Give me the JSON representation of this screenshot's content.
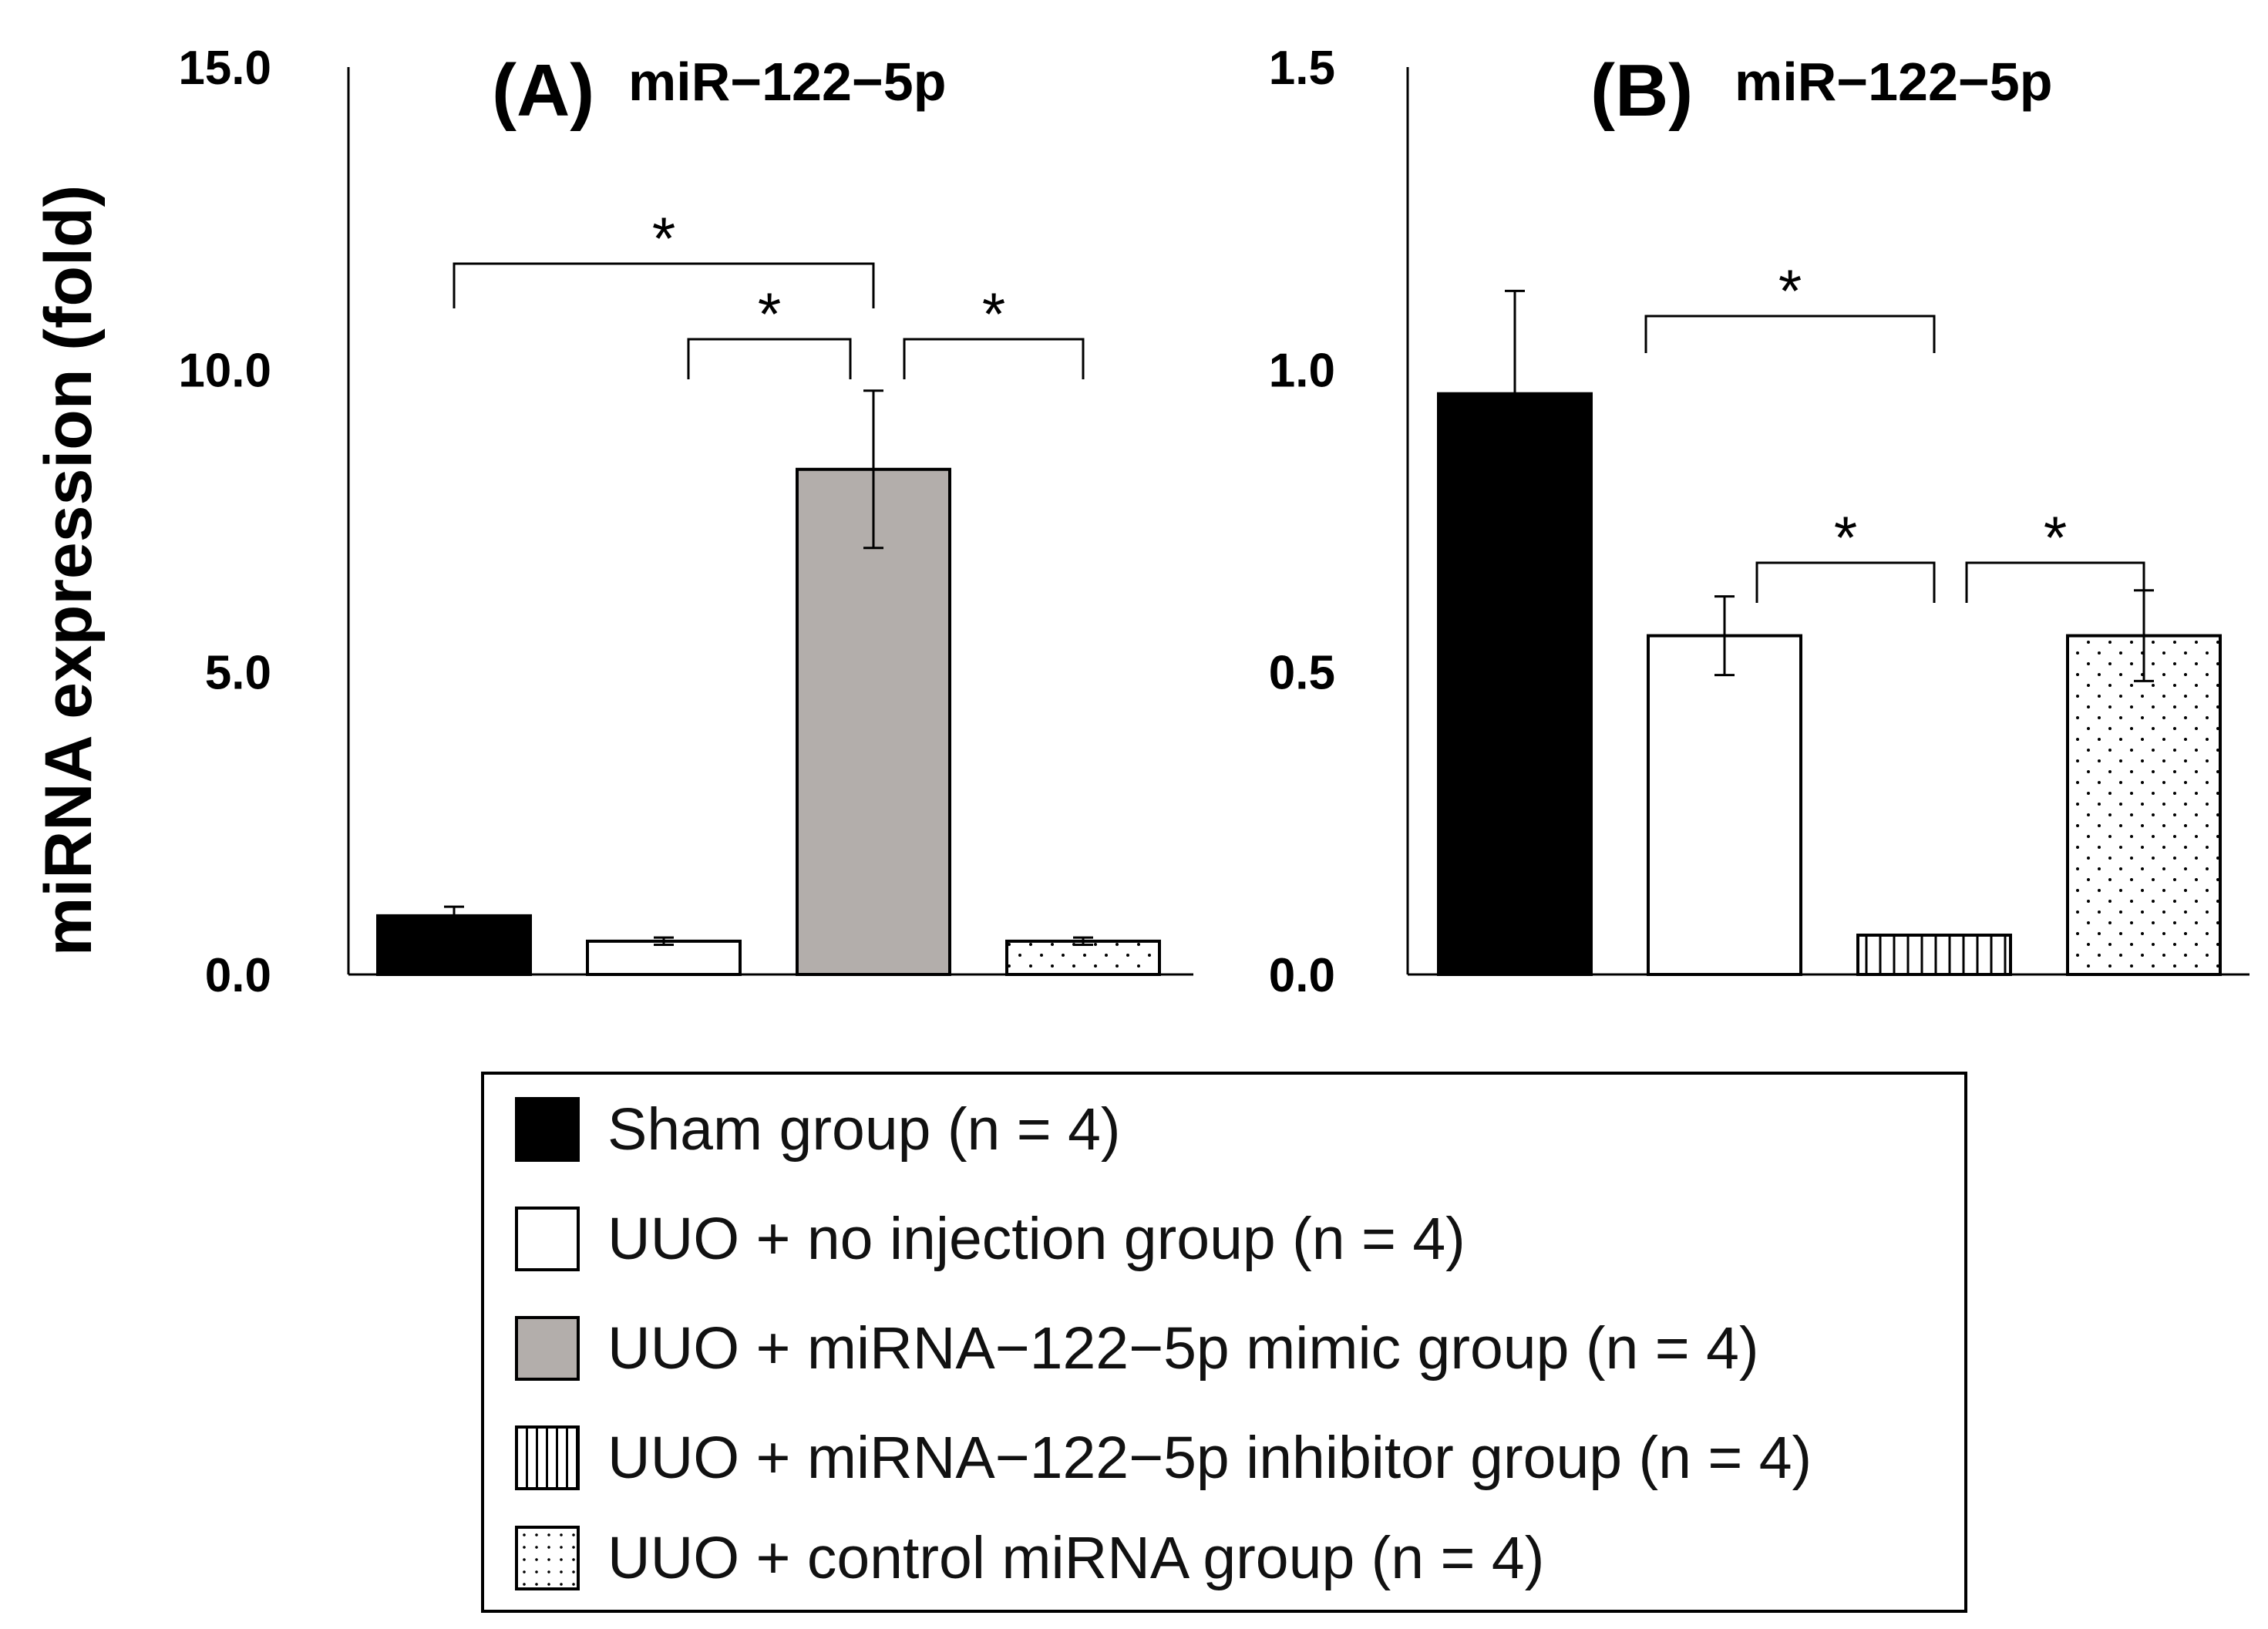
{
  "y_axis_label": "miRNA expression (fold)",
  "significance_mark": "*",
  "legend": [
    {
      "label": "Sham group (n = 4)",
      "pattern": "solid-black"
    },
    {
      "label": "UUO + no injection group (n = 4)",
      "pattern": "white"
    },
    {
      "label": "UUO + miRNA−122−5p mimic group (n = 4)",
      "pattern": "gray"
    },
    {
      "label": "UUO + miRNA−122−5p inhibitor group (n = 4)",
      "pattern": "vertical-stripes"
    },
    {
      "label": "UUO + control miRNA group (n = 4)",
      "pattern": "dots"
    }
  ],
  "colors": {
    "black": "#000000",
    "white": "#ffffff",
    "gray": "#b3aeab",
    "stroke": "#000000"
  },
  "chart_data": [
    {
      "type": "bar",
      "panel_label": "(A)",
      "title": "miR−122−5p",
      "ylabel": "miRNA expression (fold)",
      "ylim": [
        0,
        15
      ],
      "yticks": [
        "0.0",
        "5.0",
        "10.0",
        "15.0"
      ],
      "ytick_values": [
        0,
        5,
        10,
        15
      ],
      "categories": [
        "Sham group",
        "UUO + no injection group",
        "UUO + miRNA−122−5p mimic group",
        "UUO + control miRNA group"
      ],
      "values": [
        0.97,
        0.55,
        8.35,
        0.55
      ],
      "errors": [
        0.15,
        0.06,
        1.3,
        0.06
      ],
      "patterns": [
        "solid-black",
        "white",
        "gray",
        "dots"
      ],
      "significance": [
        {
          "from": 0,
          "to": 2,
          "label": "*"
        },
        {
          "from": 1,
          "to": 2,
          "label": "*"
        },
        {
          "from": 2,
          "to": 3,
          "label": "*"
        }
      ]
    },
    {
      "type": "bar",
      "panel_label": "(B)",
      "title": "miR−122−5p",
      "ylabel": "",
      "ylim": [
        0,
        1.5
      ],
      "yticks": [
        "0.0",
        "0.5",
        "1.0",
        "1.5"
      ],
      "ytick_values": [
        0,
        0.5,
        1.0,
        1.5
      ],
      "categories": [
        "Sham group",
        "UUO + no injection group",
        "UUO + miRNA−122−5p inhibitor group",
        "UUO + control miRNA group"
      ],
      "values": [
        0.96,
        0.56,
        0.065,
        0.56
      ],
      "errors": [
        0.17,
        0.065,
        0.0,
        0.075
      ],
      "patterns": [
        "solid-black",
        "white",
        "vertical-stripes",
        "dots"
      ],
      "significance": [
        {
          "from": 0,
          "to": 2,
          "label": "*"
        },
        {
          "from": 1,
          "to": 2,
          "label": "*"
        },
        {
          "from": 2,
          "to": 3,
          "label": "*"
        }
      ]
    }
  ]
}
